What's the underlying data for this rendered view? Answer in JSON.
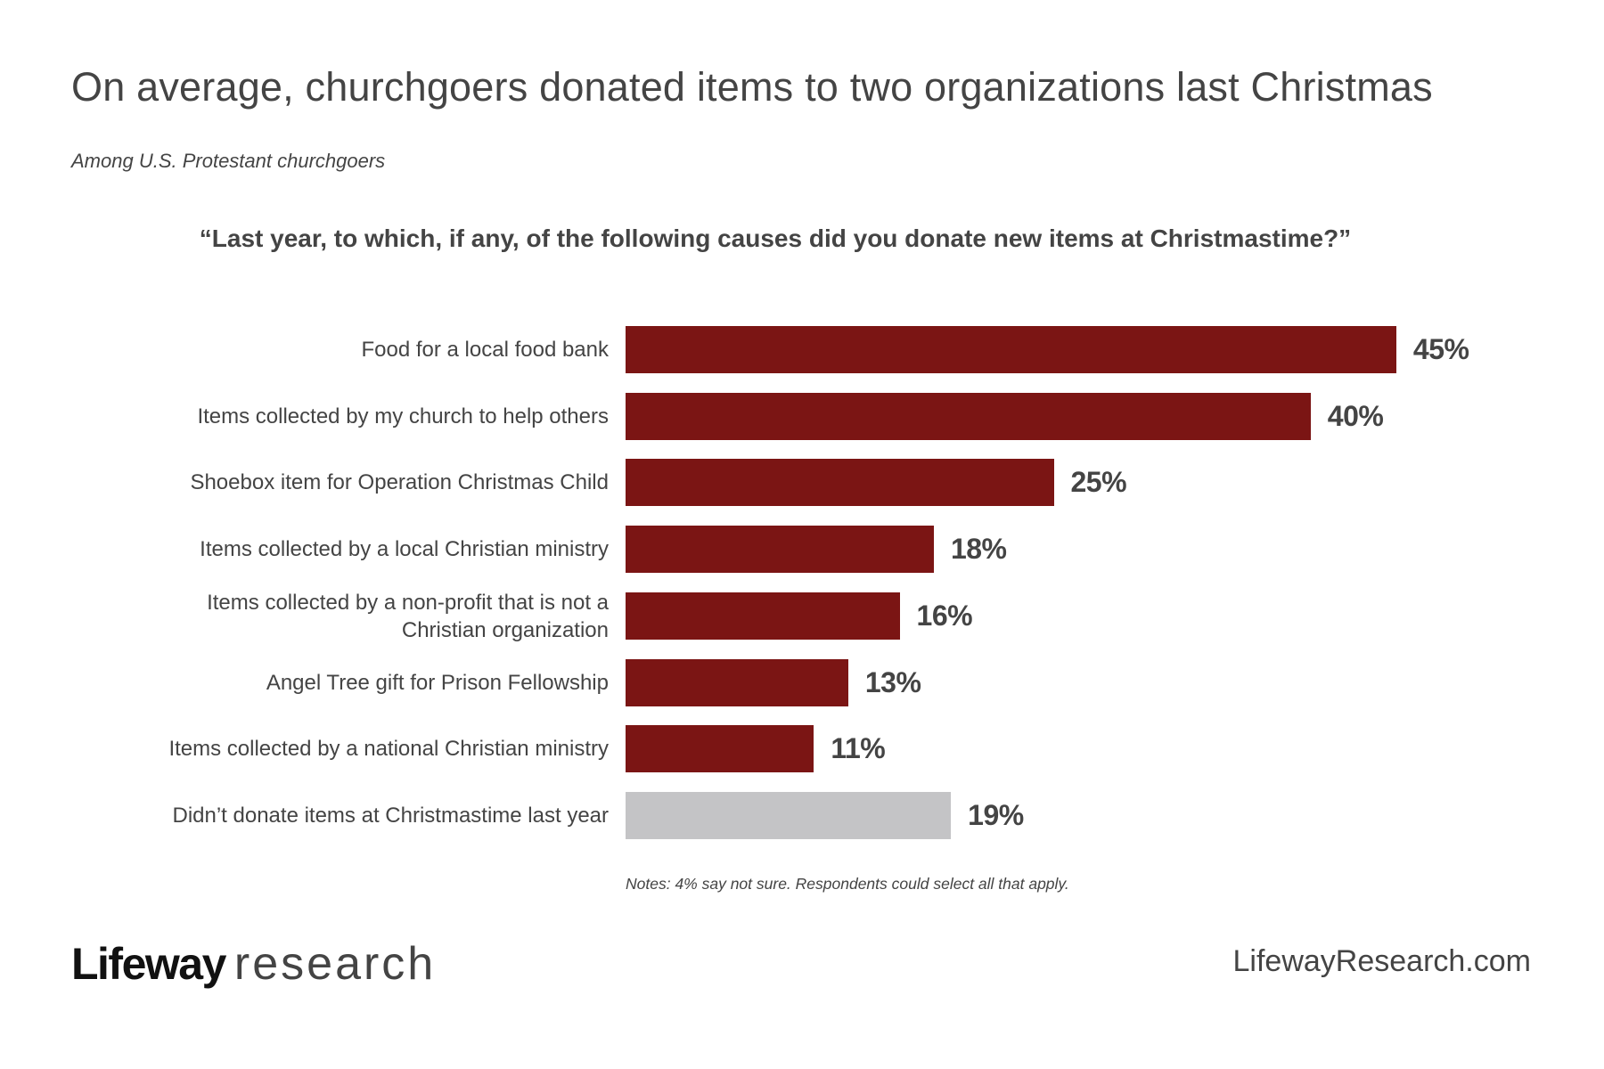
{
  "header": {
    "title": "On average, churchgoers donated items to two organizations last Christmas",
    "subtitle": "Among U.S. Protestant churchgoers",
    "question": "“Last year, to which, if any, of the following causes did you donate new items at Christmastime?”"
  },
  "colors": {
    "primary_bar": "#7B1514",
    "neutral_bar": "#C4C4C6",
    "text": "#444444",
    "logo_brand": "#111111"
  },
  "chart_data": {
    "type": "bar",
    "orientation": "horizontal",
    "title": "On average, churchgoers donated items to two organizations last Christmas",
    "subtitle": "Among U.S. Protestant churchgoers",
    "question": "“Last year, to which, if any, of the following causes did you donate new items at Christmastime?”",
    "categories": [
      "Food for a local food bank",
      "Items collected by my church to help others",
      "Shoebox item for Operation Christmas Child",
      "Items collected by a local Christian ministry",
      "Items collected by a non-profit that is not a Christian organization",
      "Angel Tree gift for Prison Fellowship",
      "Items collected by a national Christian ministry",
      "Didn’t donate items at Christmastime last year"
    ],
    "values": [
      45,
      40,
      25,
      18,
      16,
      13,
      11,
      19
    ],
    "unit": "%",
    "xlabel": "",
    "ylabel": "",
    "xlim": [
      0,
      45
    ],
    "grid": false,
    "legend": "none",
    "notes": "Notes: 4% say not sure. Respondents could select all that apply."
  },
  "rows": [
    {
      "label": "Food for a local food bank",
      "value": 45,
      "value_label": "45%",
      "kind": "primary"
    },
    {
      "label": "Items collected by my church to help others",
      "value": 40,
      "value_label": "40%",
      "kind": "primary"
    },
    {
      "label": "Shoebox item for Operation Christmas Child",
      "value": 25,
      "value_label": "25%",
      "kind": "primary"
    },
    {
      "label": "Items collected by a local Christian ministry",
      "value": 18,
      "value_label": "18%",
      "kind": "primary"
    },
    {
      "label_line1": "Items collected by a non-profit that is not a",
      "label_line2": "Christian organization",
      "label": "Items collected by a non-profit that is not a Christian organization",
      "value": 16,
      "value_label": "16%",
      "kind": "primary"
    },
    {
      "label": "Angel Tree gift for Prison Fellowship",
      "value": 13,
      "value_label": "13%",
      "kind": "primary"
    },
    {
      "label": "Items collected by a national Christian ministry",
      "value": 11,
      "value_label": "11%",
      "kind": "primary"
    },
    {
      "label": "Didn’t donate items at Christmastime last year",
      "value": 19,
      "value_label": "19%",
      "kind": "neutral"
    }
  ],
  "notes": "Notes: 4% say not sure. Respondents could select all that apply.",
  "footer": {
    "logo_brand": "Lifeway",
    "logo_sub": "research",
    "url": "LifewayResearch.com"
  }
}
